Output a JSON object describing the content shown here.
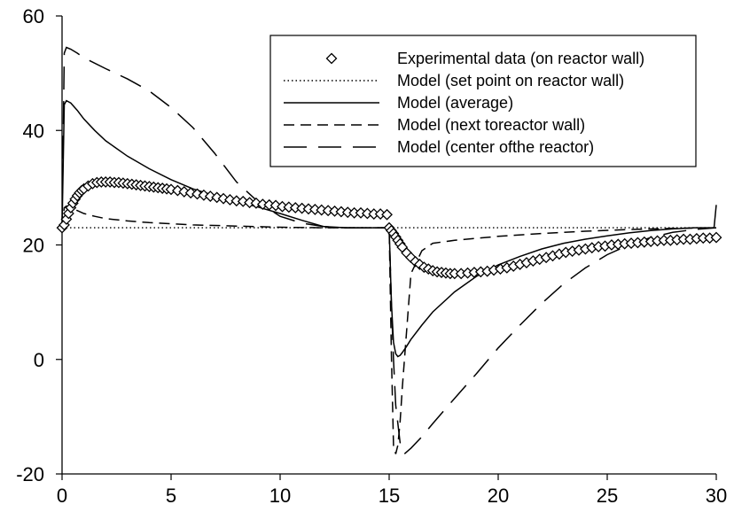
{
  "chart_data": {
    "type": "line",
    "xlim": [
      0,
      30
    ],
    "ylim": [
      -20,
      60
    ],
    "x_ticks": [
      0,
      5,
      10,
      15,
      20,
      25,
      30
    ],
    "y_ticks": [
      -20,
      0,
      20,
      40,
      60
    ],
    "grid": false,
    "legend_position": "top-right",
    "series": [
      {
        "name": "Experimental data (on reactor wall)",
        "style": "diamond-markers",
        "color": "#000000",
        "x": [
          0,
          0.1,
          0.2,
          0.3,
          0.4,
          0.5,
          0.6,
          0.7,
          0.8,
          0.9,
          1.0,
          1.2,
          1.4,
          1.6,
          1.8,
          2.0,
          2.2,
          2.4,
          2.6,
          2.8,
          3.0,
          3.2,
          3.4,
          3.6,
          3.8,
          4.0,
          4.2,
          4.4,
          4.6,
          4.8,
          5.0,
          5.3,
          5.6,
          5.9,
          6.2,
          6.5,
          6.8,
          7.1,
          7.4,
          7.7,
          8.0,
          8.3,
          8.6,
          8.9,
          9.2,
          9.5,
          9.8,
          10.1,
          10.4,
          10.7,
          11.0,
          11.3,
          11.6,
          11.9,
          12.2,
          12.5,
          12.8,
          13.1,
          13.4,
          13.7,
          14.0,
          14.3,
          14.6,
          14.9,
          15.0,
          15.1,
          15.2,
          15.3,
          15.4,
          15.5,
          15.6,
          15.8,
          16.0,
          16.2,
          16.4,
          16.6,
          16.8,
          17.0,
          17.2,
          17.4,
          17.6,
          17.8,
          18.0,
          18.3,
          18.6,
          18.9,
          19.2,
          19.5,
          19.8,
          20.1,
          20.4,
          20.7,
          21.0,
          21.3,
          21.6,
          21.9,
          22.2,
          22.5,
          22.8,
          23.1,
          23.4,
          23.7,
          24.0,
          24.3,
          24.6,
          24.9,
          25.2,
          25.5,
          25.8,
          26.1,
          26.4,
          26.7,
          27.0,
          27.3,
          27.6,
          27.9,
          28.2,
          28.5,
          28.8,
          29.1,
          29.4,
          29.7,
          30.0
        ],
        "y": [
          23,
          23.5,
          24.5,
          25.5,
          26.5,
          27.3,
          28.0,
          28.6,
          29.1,
          29.5,
          29.8,
          30.3,
          30.7,
          30.9,
          31.0,
          31.0,
          31.0,
          30.9,
          30.9,
          30.8,
          30.7,
          30.6,
          30.5,
          30.4,
          30.3,
          30.2,
          30.1,
          30.0,
          29.9,
          29.8,
          29.7,
          29.5,
          29.3,
          29.1,
          28.9,
          28.7,
          28.5,
          28.3,
          28.1,
          27.9,
          27.7,
          27.6,
          27.4,
          27.3,
          27.1,
          27.0,
          26.9,
          26.7,
          26.6,
          26.5,
          26.4,
          26.3,
          26.2,
          26.1,
          26.0,
          25.9,
          25.8,
          25.7,
          25.6,
          25.6,
          25.5,
          25.4,
          25.4,
          25.3,
          23.0,
          22.5,
          22.0,
          21.4,
          20.8,
          20.2,
          19.6,
          18.6,
          17.8,
          17.1,
          16.6,
          16.1,
          15.8,
          15.5,
          15.3,
          15.2,
          15.1,
          15.0,
          15.0,
          15.0,
          15.1,
          15.2,
          15.3,
          15.4,
          15.6,
          15.8,
          16.0,
          16.3,
          16.6,
          16.9,
          17.2,
          17.5,
          17.8,
          18.1,
          18.4,
          18.7,
          18.9,
          19.1,
          19.3,
          19.5,
          19.7,
          19.8,
          20.0,
          20.1,
          20.2,
          20.3,
          20.4,
          20.5,
          20.6,
          20.7,
          20.8,
          20.8,
          20.9,
          21.0,
          21.0,
          21.1,
          21.2,
          21.2,
          21.3
        ]
      },
      {
        "name": "Model (set point on reactor wall)",
        "style": "dotted",
        "color": "#000000",
        "x": [
          0,
          30
        ],
        "y": [
          23,
          23
        ]
      },
      {
        "name": "Model (average)",
        "style": "solid",
        "color": "#000000",
        "x": [
          0,
          0.1,
          0.2,
          0.4,
          0.7,
          1.0,
          1.5,
          2.0,
          3.0,
          4.0,
          5.0,
          6.0,
          7.0,
          8.0,
          9.0,
          10.0,
          11.0,
          12.0,
          13.0,
          14.0,
          15.0,
          15.1,
          15.2,
          15.3,
          15.4,
          15.5,
          15.6,
          15.8,
          16.0,
          16.5,
          17.0,
          18.0,
          19.0,
          20.0,
          21.0,
          22.0,
          23.0,
          24.0,
          25.0,
          26.0,
          27.0,
          28.0,
          29.0,
          29.9,
          30.0
        ],
        "y": [
          23,
          44.5,
          45.2,
          44.8,
          43.5,
          42.0,
          40.0,
          38.2,
          35.5,
          33.3,
          31.4,
          29.8,
          28.6,
          27.6,
          26.6,
          25.5,
          24.3,
          23.2,
          23.0,
          23.0,
          23.0,
          10.0,
          3.0,
          1.0,
          0.5,
          0.7,
          1.2,
          2.3,
          3.5,
          6.0,
          8.3,
          11.8,
          14.5,
          16.5,
          18.0,
          19.3,
          20.3,
          21.0,
          21.6,
          22.1,
          22.5,
          22.8,
          23.0,
          23.0,
          27.0
        ]
      },
      {
        "name": "Model (next toreactor wall)",
        "style": "short-dash",
        "color": "#000000",
        "x": [
          0,
          0.1,
          0.2,
          0.4,
          0.7,
          1.0,
          1.5,
          2.0,
          3.0,
          4.0,
          5.0,
          6.0,
          7.0,
          8.0,
          10.0,
          12.0,
          14.0,
          15.0,
          15.1,
          15.2,
          15.3,
          15.4,
          15.5,
          15.6,
          15.8,
          16.0,
          16.5,
          17.0,
          18.0,
          20.0,
          22.0,
          24.0,
          26.0,
          28.0,
          30.0
        ],
        "y": [
          23,
          26.5,
          26.8,
          26.5,
          26.0,
          25.5,
          25.0,
          24.6,
          24.2,
          23.9,
          23.7,
          23.5,
          23.4,
          23.3,
          23.1,
          23.0,
          23.0,
          23.0,
          1.0,
          -15.0,
          -16.5,
          -15.0,
          -11.0,
          -5.0,
          5.0,
          15.0,
          19.0,
          20.3,
          20.8,
          21.5,
          22.0,
          22.4,
          22.7,
          22.9,
          23.0
        ]
      },
      {
        "name": "Model (center ofthe reactor)",
        "style": "long-dash",
        "color": "#000000",
        "x": [
          0,
          0.1,
          0.2,
          0.4,
          0.7,
          1.0,
          2.0,
          3.0,
          4.0,
          5.0,
          6.0,
          7.0,
          8.0,
          9.0,
          10.0,
          11.0,
          12.0,
          13.0,
          15.0,
          15.1,
          15.2,
          15.3,
          15.5,
          15.7,
          16.0,
          16.5,
          17.0,
          17.5,
          18.0,
          19.0,
          20.0,
          21.0,
          22.0,
          23.0,
          24.0,
          25.0,
          26.0,
          27.0,
          28.0,
          29.0,
          30.0
        ],
        "y": [
          23,
          53.5,
          54.5,
          54.2,
          53.5,
          52.7,
          50.8,
          49.0,
          46.9,
          44.0,
          40.5,
          36.0,
          31.0,
          27.5,
          25.0,
          23.8,
          23.2,
          23.0,
          23.0,
          10.0,
          0.0,
          -8.0,
          -14.5,
          -16.5,
          -15.5,
          -13.5,
          -11.2,
          -9.0,
          -6.8,
          -2.5,
          2.0,
          6.0,
          9.8,
          13.2,
          16.0,
          18.3,
          20.0,
          21.3,
          22.2,
          22.7,
          23.0
        ]
      }
    ]
  }
}
